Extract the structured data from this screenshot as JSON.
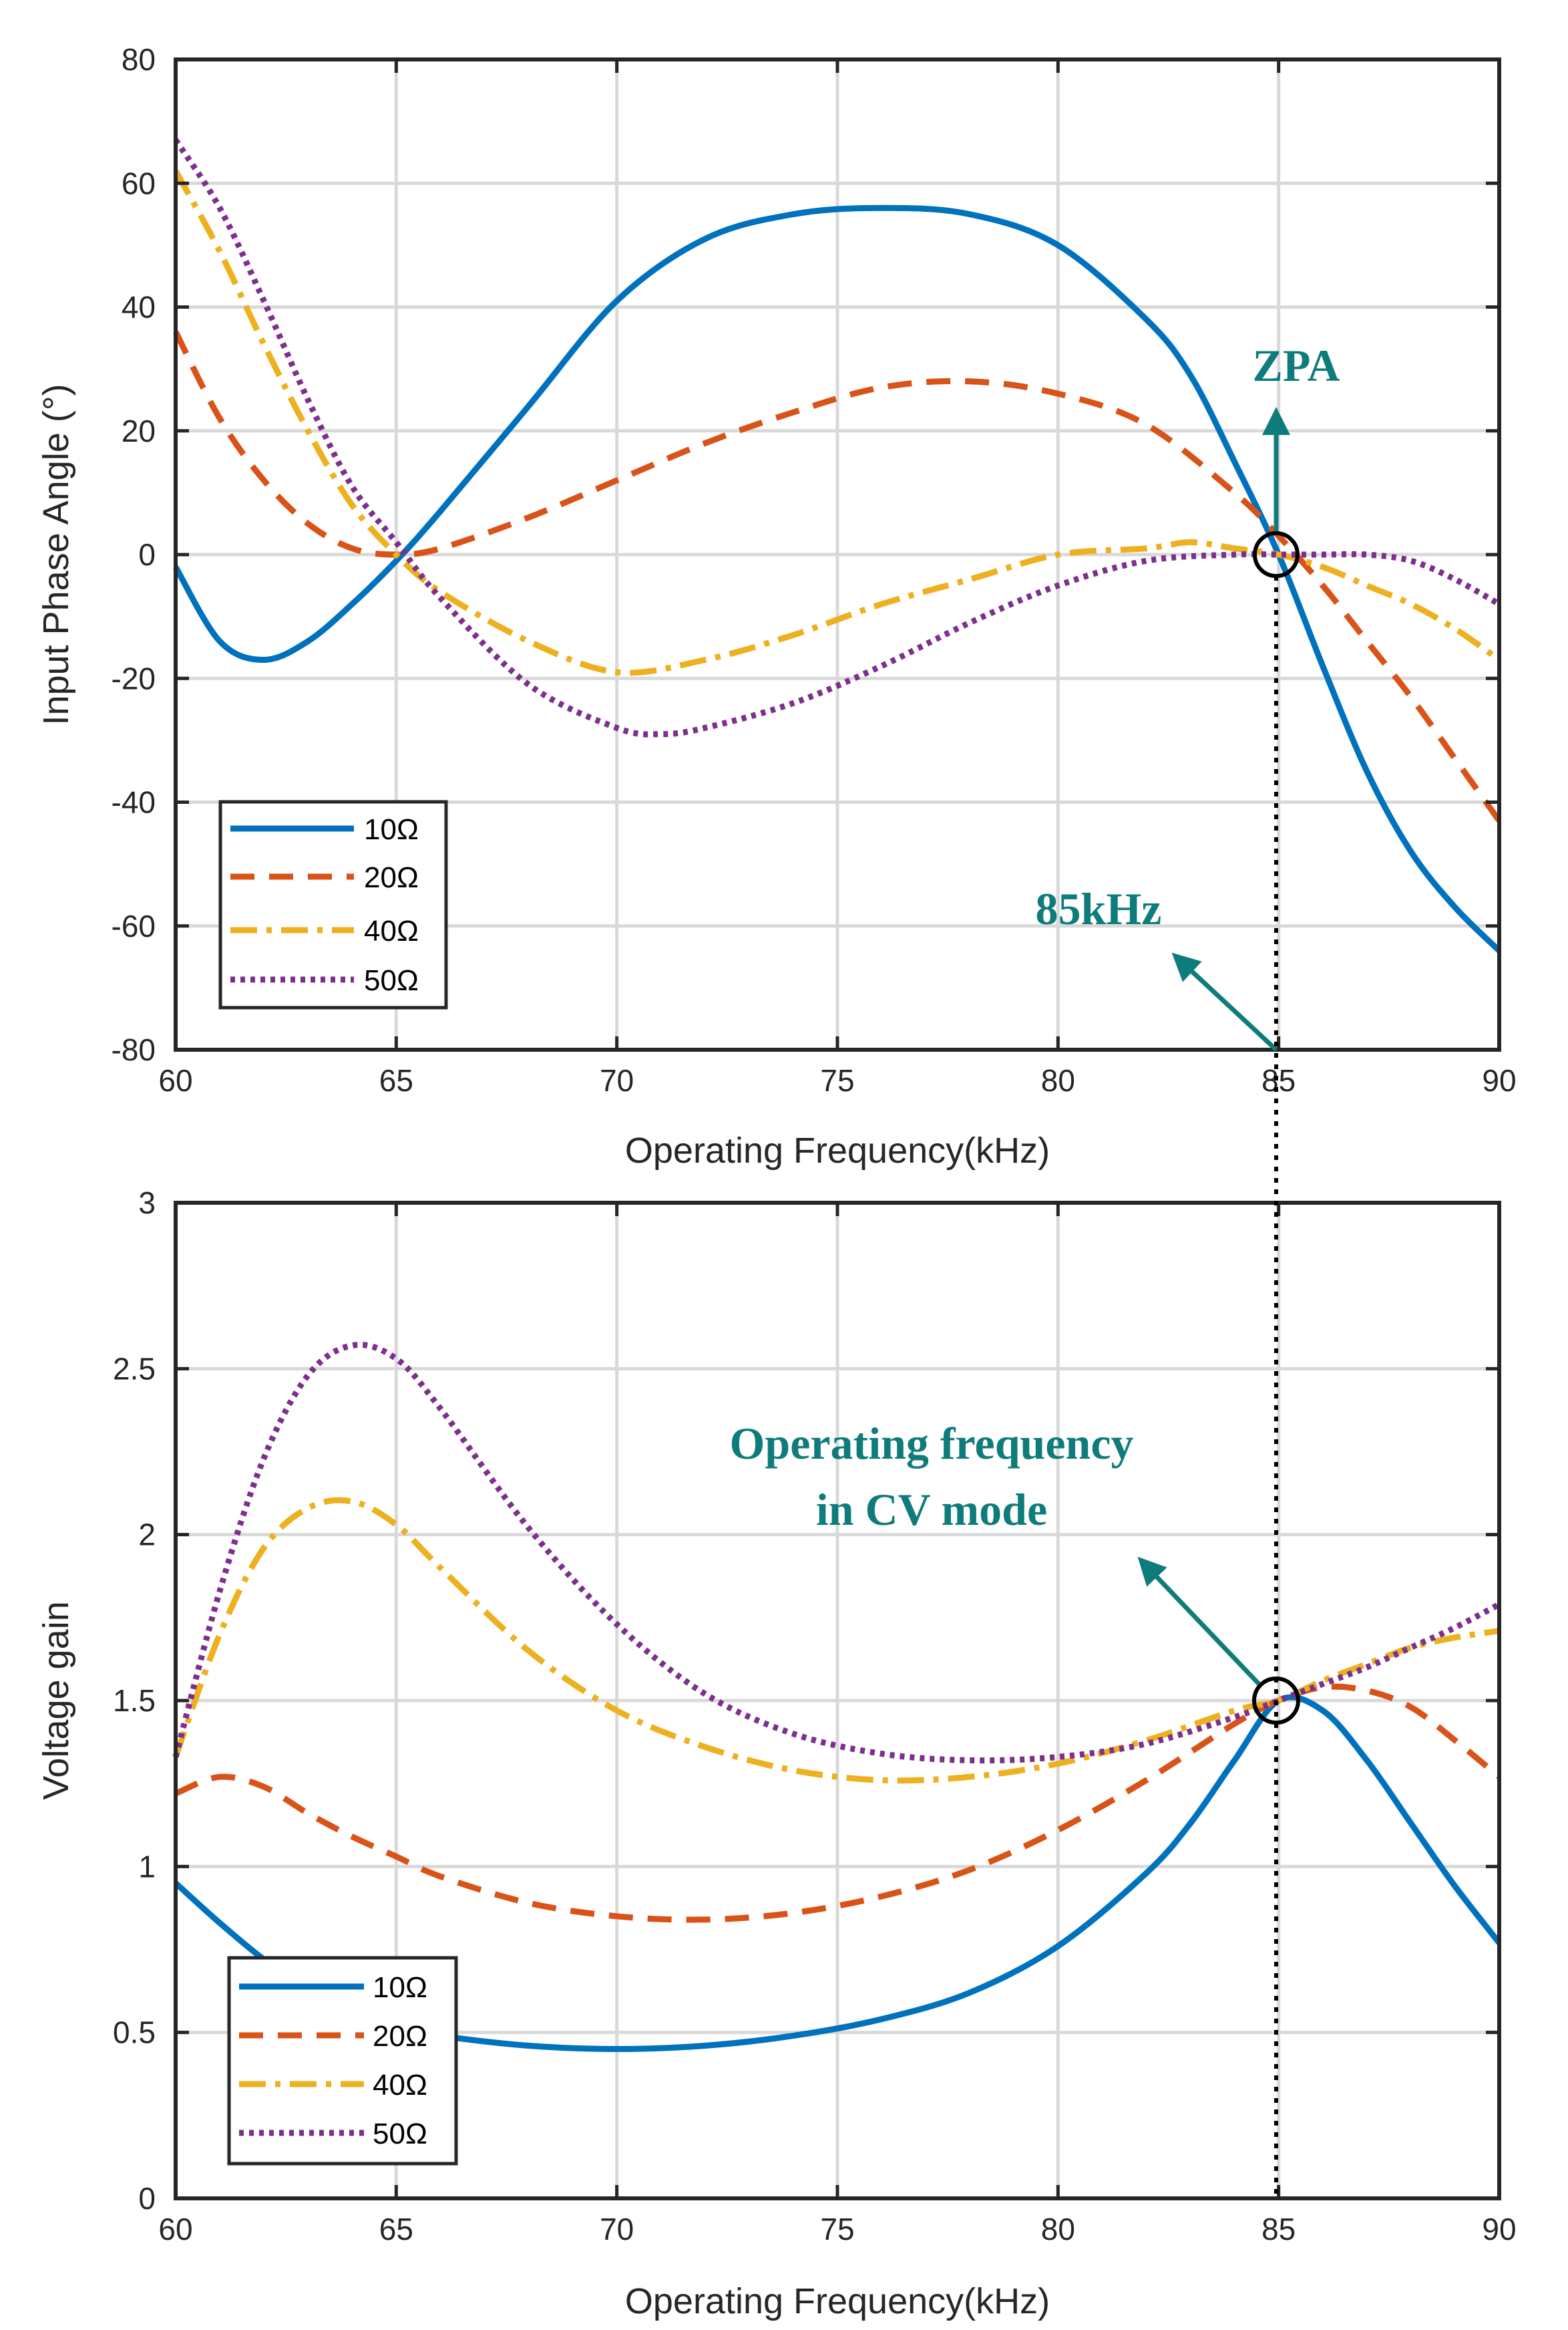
{
  "colors": {
    "series10": "#0072BD",
    "series20": "#D95319",
    "series40": "#EDB120",
    "series50": "#7E2F8E",
    "annotation": "#0E7C7B",
    "grid": "#D9D9D9",
    "axis": "#262626"
  },
  "chart_data": [
    {
      "type": "line",
      "id": "phase",
      "title": "",
      "xlabel": "Operating Frequency(kHz)",
      "ylabel": "Input Phase Angle (°)",
      "xlim": [
        60,
        90
      ],
      "ylim": [
        -80,
        80
      ],
      "xticks": [
        60,
        65,
        70,
        75,
        80,
        85,
        90
      ],
      "yticks": [
        -80,
        -60,
        -40,
        -20,
        0,
        20,
        40,
        60,
        80
      ],
      "xtick_labels": [
        "60",
        "65",
        "70",
        "75",
        "80",
        "85",
        "90"
      ],
      "ytick_labels": [
        "-80",
        "-60",
        "-40",
        "-20",
        "0",
        "20",
        "40",
        "60",
        "80"
      ],
      "grid": true,
      "legend_position": "bottom-left",
      "series": [
        {
          "name": "10Ω",
          "style": "solid",
          "x": [
            60,
            61,
            62,
            63,
            64,
            65,
            66,
            68,
            70,
            72,
            74,
            76,
            78,
            80,
            82,
            83,
            84,
            85,
            86,
            87,
            88,
            89,
            90
          ],
          "values": [
            -2,
            -14,
            -17,
            -14,
            -8,
            -1,
            7,
            24,
            41,
            51,
            55,
            56,
            55,
            50,
            38,
            29,
            15,
            0,
            -18,
            -35,
            -48,
            -57,
            -64
          ]
        },
        {
          "name": "20Ω",
          "style": "dashed",
          "x": [
            60,
            61,
            62,
            63,
            64,
            65,
            66,
            68,
            70,
            72,
            74,
            76,
            78,
            80,
            82,
            84,
            85,
            86,
            87,
            88,
            89,
            90
          ],
          "values": [
            36,
            22,
            12,
            5,
            1,
            0,
            1,
            6,
            12,
            18,
            23,
            27,
            28,
            26,
            21,
            10,
            3,
            -5,
            -14,
            -23,
            -33,
            -43
          ]
        },
        {
          "name": "40Ω",
          "style": "dashdot",
          "x": [
            60,
            61,
            62,
            63,
            64,
            65,
            66,
            68,
            70,
            72,
            74,
            76,
            78,
            80,
            82,
            83,
            84,
            85,
            86,
            87,
            88,
            89,
            90
          ],
          "values": [
            62,
            49,
            34,
            20,
            8,
            0,
            -6,
            -14,
            -19,
            -17,
            -13,
            -8,
            -4,
            0,
            1,
            2,
            1,
            0,
            -2,
            -5,
            -8,
            -12,
            -17
          ]
        },
        {
          "name": "50Ω",
          "style": "dotted",
          "x": [
            60,
            61,
            62,
            63,
            64,
            65,
            66,
            68,
            70,
            71,
            72,
            74,
            76,
            78,
            80,
            82,
            84,
            85,
            86,
            87,
            88,
            89,
            90
          ],
          "values": [
            67,
            56,
            41,
            25,
            11,
            2,
            -7,
            -21,
            -28,
            -29,
            -28,
            -24,
            -18,
            -11,
            -5,
            -1,
            0,
            0,
            0,
            0,
            -1,
            -4,
            -8
          ]
        }
      ],
      "annotations": [
        {
          "id": "zpa",
          "text": "ZPA",
          "x": 85,
          "y": 0
        },
        {
          "id": "freq",
          "text": "85kHz",
          "x": 85,
          "y": -80
        }
      ]
    },
    {
      "type": "line",
      "id": "gain",
      "title": "",
      "xlabel": "Operating Frequency(kHz)",
      "ylabel": "Voltage gain",
      "xlim": [
        60,
        90
      ],
      "ylim": [
        0,
        3
      ],
      "xticks": [
        60,
        65,
        70,
        75,
        80,
        85,
        90
      ],
      "yticks": [
        0,
        0.5,
        1,
        1.5,
        2,
        2.5,
        3
      ],
      "xtick_labels": [
        "60",
        "65",
        "70",
        "75",
        "80",
        "85",
        "90"
      ],
      "ytick_labels": [
        "0",
        "0.5",
        "1",
        "1.5",
        "2",
        "2.5",
        "3"
      ],
      "grid": true,
      "legend_position": "bottom-left",
      "series": [
        {
          "name": "10Ω",
          "style": "solid",
          "x": [
            60,
            61,
            62,
            63,
            64,
            65,
            66,
            68,
            70,
            72,
            74,
            76,
            78,
            80,
            82,
            83,
            84,
            85,
            86,
            87,
            88,
            89,
            90
          ],
          "values": [
            0.95,
            0.83,
            0.72,
            0.63,
            0.56,
            0.52,
            0.49,
            0.46,
            0.45,
            0.46,
            0.49,
            0.54,
            0.62,
            0.76,
            0.98,
            1.13,
            1.32,
            1.5,
            1.47,
            1.32,
            1.13,
            0.94,
            0.77
          ]
        },
        {
          "name": "20Ω",
          "style": "dashed",
          "x": [
            60,
            61,
            62,
            63,
            64,
            65,
            66,
            68,
            70,
            72,
            74,
            76,
            78,
            80,
            82,
            84,
            85,
            86,
            87,
            88,
            89,
            90
          ],
          "values": [
            1.22,
            1.27,
            1.24,
            1.16,
            1.09,
            1.03,
            0.97,
            0.89,
            0.85,
            0.84,
            0.86,
            0.91,
            0.99,
            1.11,
            1.26,
            1.43,
            1.5,
            1.54,
            1.53,
            1.48,
            1.38,
            1.27
          ]
        },
        {
          "name": "40Ω",
          "style": "dashdot",
          "x": [
            60,
            61,
            62,
            63,
            64,
            65,
            66,
            68,
            70,
            72,
            74,
            76,
            78,
            80,
            82,
            84,
            85,
            86,
            87,
            88,
            89,
            90
          ],
          "values": [
            1.33,
            1.7,
            1.96,
            2.08,
            2.1,
            2.03,
            1.9,
            1.65,
            1.47,
            1.36,
            1.29,
            1.26,
            1.27,
            1.31,
            1.38,
            1.47,
            1.5,
            1.56,
            1.61,
            1.66,
            1.69,
            1.71
          ]
        },
        {
          "name": "50Ω",
          "style": "dotted",
          "x": [
            60,
            61,
            62,
            63,
            64,
            65,
            66,
            68,
            70,
            72,
            74,
            76,
            78,
            80,
            82,
            84,
            85,
            86,
            87,
            88,
            89,
            90
          ],
          "values": [
            1.33,
            1.83,
            2.23,
            2.48,
            2.57,
            2.53,
            2.38,
            2.02,
            1.73,
            1.52,
            1.4,
            1.34,
            1.32,
            1.33,
            1.37,
            1.45,
            1.5,
            1.55,
            1.6,
            1.66,
            1.72,
            1.79
          ]
        }
      ],
      "annotations": [
        {
          "id": "cv",
          "text_lines": [
            "Operating frequency",
            "in CV mode"
          ],
          "x": 85,
          "y": 1.5
        }
      ]
    }
  ]
}
